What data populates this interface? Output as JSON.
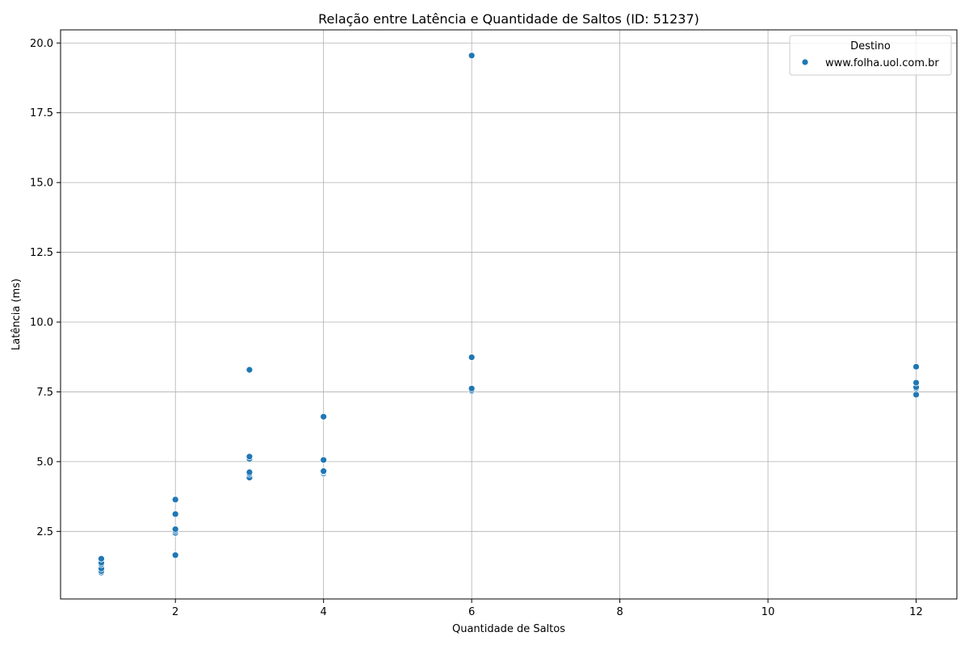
{
  "chart_data": {
    "type": "scatter",
    "title": "Relação entre Latência e Quantidade de Saltos (ID: 51237)",
    "xlabel": "Quantidade de Saltos",
    "ylabel": "Latência (ms)",
    "xlim": [
      0.45,
      12.55
    ],
    "ylim": [
      0.08,
      20.47
    ],
    "xticks": [
      2,
      4,
      6,
      8,
      10,
      12
    ],
    "yticks": [
      2.5,
      5.0,
      7.5,
      10.0,
      12.5,
      15.0,
      17.5,
      20.0
    ],
    "xtick_labels": [
      "2",
      "4",
      "6",
      "8",
      "10",
      "12"
    ],
    "ytick_labels": [
      "2.5",
      "5.0",
      "7.5",
      "10.0",
      "12.5",
      "15.0",
      "17.5",
      "20.0"
    ],
    "grid": true,
    "legend": {
      "title": "Destino",
      "position": "top-right"
    },
    "series": [
      {
        "name": "www.folha.uol.com.br",
        "color": "#1f77b4",
        "points": [
          {
            "x": 1,
            "y": 1.03
          },
          {
            "x": 1,
            "y": 1.08
          },
          {
            "x": 1,
            "y": 1.17
          },
          {
            "x": 1,
            "y": 1.32
          },
          {
            "x": 1,
            "y": 1.38
          },
          {
            "x": 1,
            "y": 1.52
          },
          {
            "x": 2,
            "y": 1.65
          },
          {
            "x": 2,
            "y": 2.45
          },
          {
            "x": 2,
            "y": 2.52
          },
          {
            "x": 2,
            "y": 2.58
          },
          {
            "x": 2,
            "y": 3.12
          },
          {
            "x": 2,
            "y": 3.64
          },
          {
            "x": 3,
            "y": 4.43
          },
          {
            "x": 3,
            "y": 4.56
          },
          {
            "x": 3,
            "y": 4.62
          },
          {
            "x": 3,
            "y": 5.1
          },
          {
            "x": 3,
            "y": 5.18
          },
          {
            "x": 3,
            "y": 8.29
          },
          {
            "x": 4,
            "y": 4.58
          },
          {
            "x": 4,
            "y": 4.63
          },
          {
            "x": 4,
            "y": 4.66
          },
          {
            "x": 4,
            "y": 5.06
          },
          {
            "x": 4,
            "y": 6.61
          },
          {
            "x": 6,
            "y": 7.52
          },
          {
            "x": 6,
            "y": 7.56
          },
          {
            "x": 6,
            "y": 7.62
          },
          {
            "x": 6,
            "y": 8.74
          },
          {
            "x": 6,
            "y": 19.55
          },
          {
            "x": 12,
            "y": 7.4
          },
          {
            "x": 12,
            "y": 7.62
          },
          {
            "x": 12,
            "y": 7.67
          },
          {
            "x": 12,
            "y": 7.83
          },
          {
            "x": 12,
            "y": 8.4
          }
        ]
      }
    ]
  }
}
